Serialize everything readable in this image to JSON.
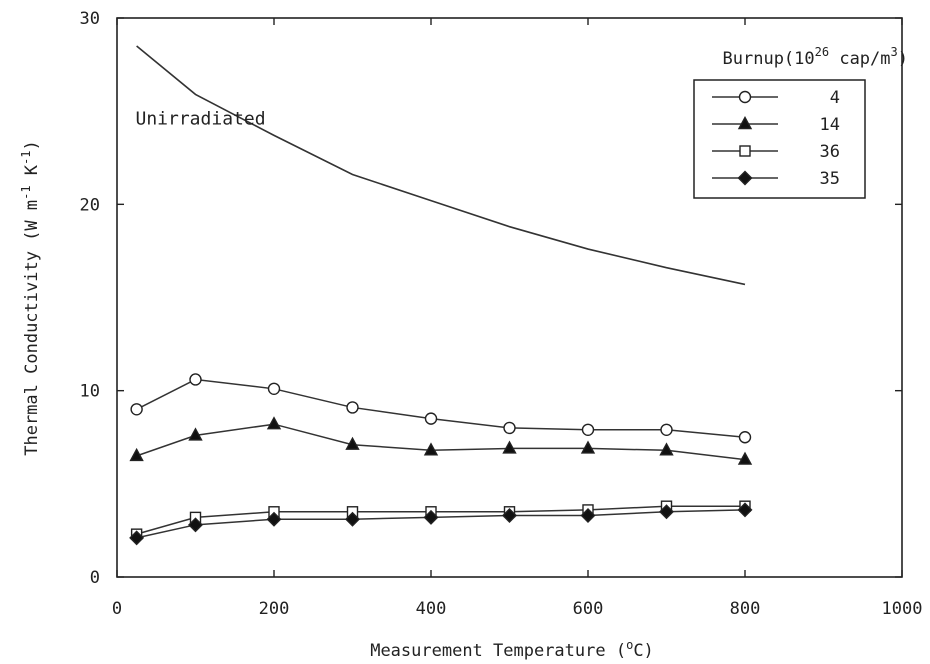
{
  "chart_data": {
    "type": "line",
    "xlabel": "Measurement Temperature (",
    "xlabel_unit_sup": "o",
    "xlabel_unit_after": "C)",
    "ylabel_text": "Thermal Conductivity (W m",
    "ylabel_sup1": "-1",
    "ylabel_mid": " K",
    "ylabel_sup2": "-1",
    "ylabel_end": ")",
    "xlim": [
      0,
      1000
    ],
    "ylim": [
      0,
      30
    ],
    "x_ticks": [
      "0",
      "200",
      "400",
      "600",
      "800",
      "1000"
    ],
    "y_ticks": [
      "0",
      "10",
      "20",
      "30"
    ],
    "grid": false,
    "legend_placement": "top-right",
    "legend": {
      "title_pre": "Burnup(10",
      "title_sup1": "26",
      "title_mid": " cap/m",
      "title_sup2": "3",
      "title_end": ")"
    },
    "annotations": [
      {
        "text": "Unirradiated",
        "x": 100,
        "y": 24.6
      }
    ],
    "unirradiated": {
      "x": [
        25,
        100,
        200,
        300,
        400,
        500,
        600,
        700,
        800
      ],
      "y": [
        28.5,
        25.9,
        23.7,
        21.6,
        20.2,
        18.8,
        17.6,
        16.6,
        15.7
      ]
    },
    "series": [
      {
        "name": "4",
        "marker": "circle-open",
        "x": [
          25,
          100,
          200,
          300,
          400,
          500,
          600,
          700,
          800
        ],
        "y": [
          9.0,
          10.6,
          10.1,
          9.1,
          8.5,
          8.0,
          7.9,
          7.9,
          7.5
        ]
      },
      {
        "name": "14",
        "marker": "triangle-filled",
        "x": [
          25,
          100,
          200,
          300,
          400,
          500,
          600,
          700,
          800
        ],
        "y": [
          6.5,
          7.6,
          8.2,
          7.1,
          6.8,
          6.9,
          6.9,
          6.8,
          6.3
        ]
      },
      {
        "name": "36",
        "marker": "square-open",
        "x": [
          25,
          100,
          200,
          300,
          400,
          500,
          600,
          700,
          800
        ],
        "y": [
          2.3,
          3.2,
          3.5,
          3.5,
          3.5,
          3.5,
          3.6,
          3.8,
          3.8
        ]
      },
      {
        "name": "35",
        "marker": "diamond-filled",
        "x": [
          25,
          100,
          200,
          300,
          400,
          500,
          600,
          700,
          800
        ],
        "y": [
          2.1,
          2.8,
          3.1,
          3.1,
          3.2,
          3.3,
          3.3,
          3.5,
          3.6
        ]
      }
    ]
  }
}
